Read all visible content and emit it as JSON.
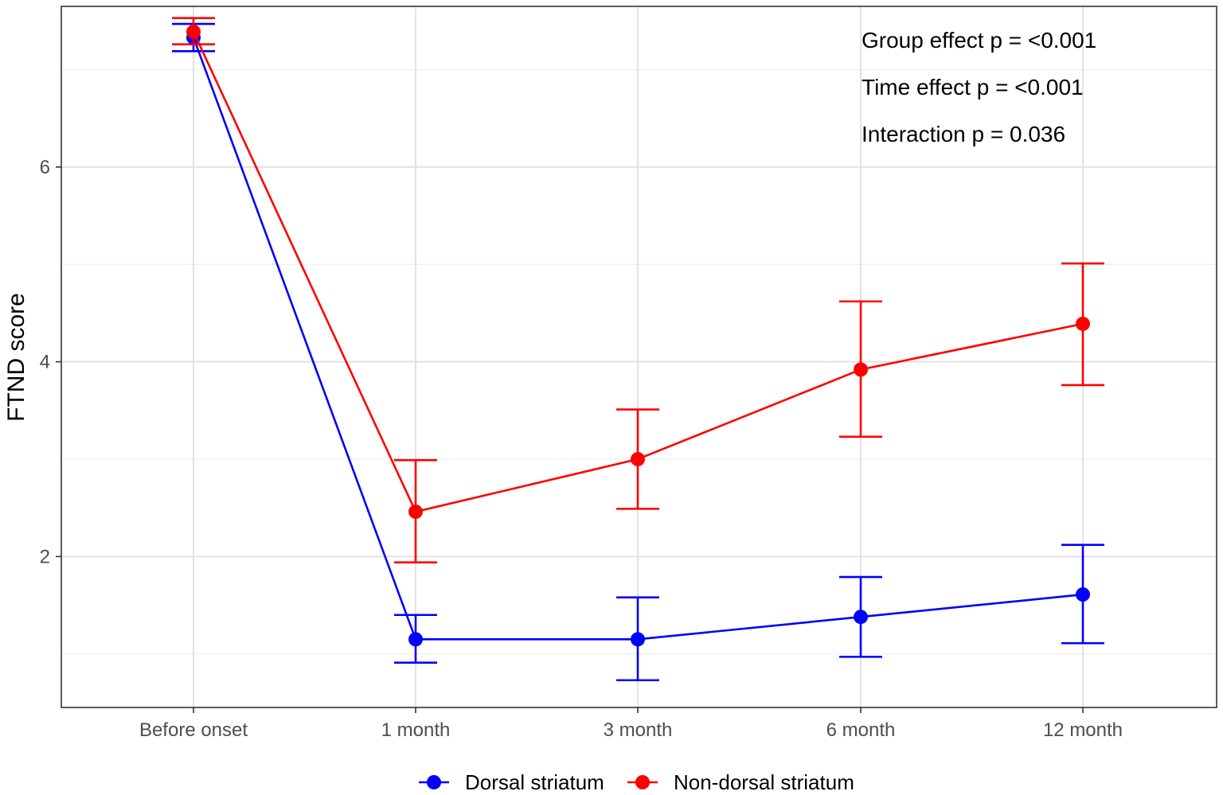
{
  "chart_data": {
    "type": "line",
    "title": "",
    "xlabel": "",
    "ylabel": "FTND score",
    "categories": [
      "Before onset",
      "1 month",
      "3 month",
      "6 month",
      "12 month"
    ],
    "yticks": [
      2,
      4,
      6
    ],
    "ytick_labels": [
      "2",
      "4",
      "6"
    ],
    "ylim": [
      0.45,
      7.65
    ],
    "grid": true,
    "legend_position": "bottom",
    "series": [
      {
        "name": "Dorsal striatum",
        "color": "#0000ff",
        "values": [
          7.33,
          1.15,
          1.15,
          1.38,
          1.61
        ],
        "lower": [
          7.19,
          0.91,
          0.73,
          0.97,
          1.11
        ],
        "upper": [
          7.47,
          1.4,
          1.58,
          1.79,
          2.12
        ]
      },
      {
        "name": "Non-dorsal striatum",
        "color": "#ff0000",
        "values": [
          7.39,
          2.46,
          3.0,
          3.92,
          4.39
        ],
        "lower": [
          7.26,
          1.94,
          2.49,
          3.23,
          3.76
        ],
        "upper": [
          7.53,
          2.99,
          3.51,
          4.62,
          5.01
        ]
      }
    ],
    "annotations": [
      "Group effect p = <0.001",
      "Time effect p = <0.001",
      "Interaction p = 0.036"
    ]
  }
}
